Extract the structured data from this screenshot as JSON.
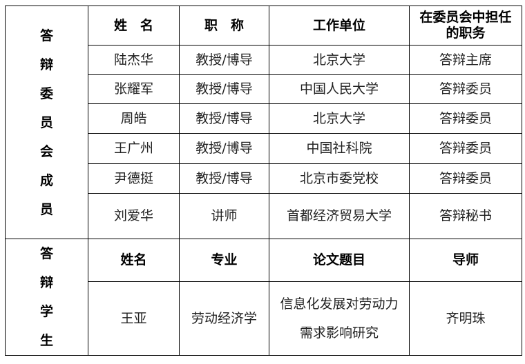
{
  "committee": {
    "side_label": [
      "答",
      "辩",
      "委",
      "员",
      "会",
      "成",
      "员"
    ],
    "headers": [
      "姓　名",
      "职　称",
      "工作单位",
      "在委员会中担任的职务"
    ],
    "rows": [
      [
        "陆杰华",
        "教授/博导",
        "北京大学",
        "答辩主席"
      ],
      [
        "张耀军",
        "教授/博导",
        "中国人民大学",
        "答辩委员"
      ],
      [
        "周皓",
        "教授/博导",
        "北京大学",
        "答辩委员"
      ],
      [
        "王广州",
        "教授/博导",
        "中国社科院",
        "答辩委员"
      ],
      [
        "尹德挺",
        "教授/博导",
        "北京市委党校",
        "答辩委员"
      ],
      [
        "刘爱华",
        "讲师",
        "首都经济贸易大学",
        "答辩秘书"
      ]
    ]
  },
  "student": {
    "side_label": [
      "答",
      "辩",
      "学",
      "生"
    ],
    "headers": [
      "姓名",
      "专业",
      "论文题目",
      "导师"
    ],
    "row": [
      "王亚",
      "劳动经济学",
      "信息化发展对劳动力需求影响研究",
      "齐明珠"
    ]
  }
}
